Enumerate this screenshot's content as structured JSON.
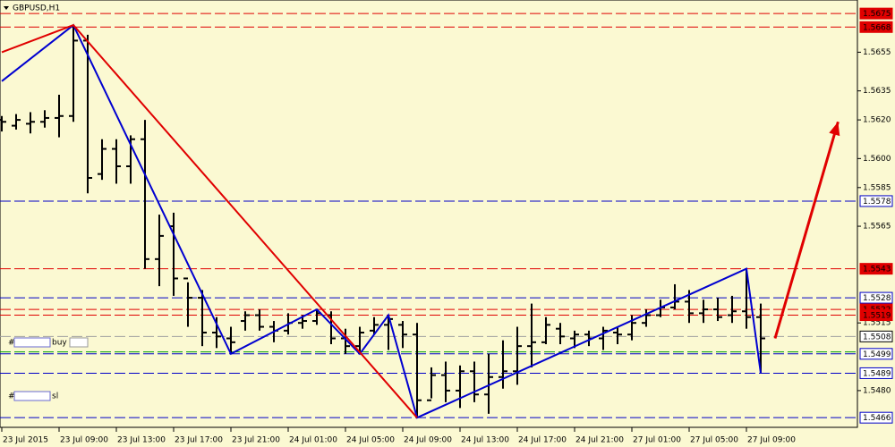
{
  "chart_data": {
    "type": "ohlc",
    "title": "GBPUSD,H1",
    "color": "#000000",
    "x": [
      0,
      1,
      2,
      3,
      4,
      5,
      6,
      7,
      8,
      9,
      10,
      11,
      12,
      13,
      14,
      15,
      16,
      17,
      18,
      19,
      20,
      21,
      22,
      23,
      24,
      25,
      26,
      27,
      28,
      29,
      30,
      31,
      32,
      33,
      34,
      35,
      36,
      37,
      38,
      39,
      40,
      41,
      42,
      43,
      44,
      45,
      46,
      47,
      48,
      49,
      50,
      51,
      52,
      53
    ],
    "open": [
      1.562,
      1.5617,
      1.5618,
      1.5619,
      1.5621,
      1.5622,
      1.5661,
      1.5592,
      1.5605,
      1.5596,
      1.561,
      1.5548,
      1.5565,
      1.5538,
      1.5528,
      1.551,
      1.5507,
      1.5516,
      1.5519,
      1.5513,
      1.5511,
      1.5515,
      1.5516,
      1.5519,
      1.5507,
      1.5503,
      1.5511,
      1.5514,
      1.5514,
      1.5509,
      1.5475,
      1.5488,
      1.548,
      1.549,
      1.5478,
      1.5487,
      1.549,
      1.5503,
      1.5505,
      1.5512,
      1.5507,
      1.5509,
      1.5507,
      1.551,
      1.5509,
      1.5515,
      1.5519,
      1.5523,
      1.5526,
      1.552,
      1.5522,
      1.5519,
      1.5521,
      1.5518
    ],
    "high": [
      1.5622,
      1.5623,
      1.5624,
      1.5625,
      1.5633,
      1.5669,
      1.5664,
      1.561,
      1.561,
      1.5612,
      1.562,
      1.5571,
      1.5572,
      1.5536,
      1.5532,
      1.5518,
      1.5513,
      1.5521,
      1.5522,
      1.5516,
      1.552,
      1.5519,
      1.5522,
      1.5521,
      1.5512,
      1.5513,
      1.5518,
      1.5519,
      1.5516,
      1.5515,
      1.5492,
      1.5495,
      1.5493,
      1.5495,
      1.5499,
      1.5506,
      1.5513,
      1.5525,
      1.5518,
      1.5515,
      1.5511,
      1.5511,
      1.5513,
      1.5513,
      1.5519,
      1.5522,
      1.5527,
      1.5535,
      1.5532,
      1.5527,
      1.5528,
      1.5529,
      1.5543,
      1.5525
    ],
    "low": [
      1.5614,
      1.5615,
      1.5613,
      1.5616,
      1.5611,
      1.5619,
      1.5582,
      1.5589,
      1.5587,
      1.5587,
      1.5543,
      1.5534,
      1.5529,
      1.5513,
      1.5503,
      1.5502,
      1.5499,
      1.5511,
      1.5511,
      1.5505,
      1.5509,
      1.5512,
      1.5514,
      1.5504,
      1.5499,
      1.5499,
      1.5509,
      1.5501,
      1.5502,
      1.5466,
      1.5476,
      1.5474,
      1.5471,
      1.5474,
      1.5468,
      1.5481,
      1.5483,
      1.5492,
      1.5504,
      1.5504,
      1.5502,
      1.5503,
      1.5501,
      1.5504,
      1.5506,
      1.5513,
      1.5518,
      1.5522,
      1.5515,
      1.5515,
      1.5516,
      1.5515,
      1.5512,
      1.5489
    ],
    "close": [
      1.5619,
      1.562,
      1.5619,
      1.5621,
      1.5622,
      1.5661,
      1.559,
      1.5605,
      1.5596,
      1.561,
      1.5548,
      1.556,
      1.5538,
      1.5528,
      1.551,
      1.5508,
      1.5505,
      1.5519,
      1.5513,
      1.5511,
      1.5515,
      1.5516,
      1.552,
      1.5507,
      1.5503,
      1.551,
      1.5514,
      1.5517,
      1.5509,
      1.5475,
      1.5488,
      1.548,
      1.549,
      1.5478,
      1.5487,
      1.549,
      1.5503,
      1.5505,
      1.5514,
      1.5508,
      1.5509,
      1.5507,
      1.5511,
      1.5509,
      1.5515,
      1.5519,
      1.5523,
      1.5526,
      1.552,
      1.5522,
      1.5518,
      1.5521,
      1.5518,
      1.5507
    ],
    "xlim": [
      0,
      60
    ],
    "ylim": [
      1.5461,
      1.5682
    ],
    "xticks": [
      {
        "value": 0,
        "label": "23 Jul 2015"
      },
      {
        "value": 4,
        "label": "23 Jul 09:00"
      },
      {
        "value": 8,
        "label": "23 Jul 13:00"
      },
      {
        "value": 12,
        "label": "23 Jul 17:00"
      },
      {
        "value": 16,
        "label": "23 Jul 21:00"
      },
      {
        "value": 20,
        "label": "24 Jul 01:00"
      },
      {
        "value": 24,
        "label": "24 Jul 05:00"
      },
      {
        "value": 28,
        "label": "24 Jul 09:00"
      },
      {
        "value": 32,
        "label": "24 Jul 13:00"
      },
      {
        "value": 36,
        "label": "24 Jul 17:00"
      },
      {
        "value": 40,
        "label": "24 Jul 21:00"
      },
      {
        "value": 44,
        "label": "27 Jul 01:00"
      },
      {
        "value": 48,
        "label": "27 Jul 05:00"
      },
      {
        "value": 52,
        "label": "27 Jul 09:00"
      }
    ],
    "yticks": [
      {
        "value": 1.5655,
        "label": "1.5655"
      },
      {
        "value": 1.5635,
        "label": "1.5635"
      },
      {
        "value": 1.562,
        "label": "1.5620"
      },
      {
        "value": 1.56,
        "label": "1.5600"
      },
      {
        "value": 1.5585,
        "label": "1.5585"
      },
      {
        "value": 1.5565,
        "label": "1.5565"
      },
      {
        "value": 1.5515,
        "label": "1.5515"
      },
      {
        "value": 1.548,
        "label": "1.5480"
      }
    ],
    "levels": [
      {
        "value": 1.5675,
        "color": "#e00000",
        "boxed": true
      },
      {
        "value": 1.5668,
        "color": "#e00000",
        "boxed": true
      },
      {
        "value": 1.5578,
        "color": "#0000c8",
        "boxed": true
      },
      {
        "value": 1.5543,
        "color": "#e00000",
        "boxed": true
      },
      {
        "value": 1.5528,
        "color": "#0000c8",
        "boxed": true
      },
      {
        "value": 1.5522,
        "color": "#e00000",
        "boxed": true
      },
      {
        "value": 1.5519,
        "color": "#e00000",
        "boxed": true
      },
      {
        "value": 1.5508,
        "color": "#a0a0a0",
        "boxed": true
      },
      {
        "value": 1.55,
        "color": "#00a000",
        "boxed": false
      },
      {
        "value": 1.5499,
        "color": "#0000c8",
        "boxed": true
      },
      {
        "value": 1.5489,
        "color": "#0000c8",
        "boxed": true
      },
      {
        "value": 1.5466,
        "color": "#0000c8",
        "boxed": true
      }
    ],
    "lines": [
      {
        "color": "#0000d0",
        "x": [
          0,
          5,
          16,
          22,
          25,
          27,
          29,
          52,
          53
        ],
        "values": [
          1.564,
          1.5669,
          1.5499,
          1.5522,
          1.5499,
          1.5519,
          1.5466,
          1.5543,
          1.5489
        ],
        "arrow": false
      },
      {
        "color": "#e00000",
        "x": [
          0,
          5,
          29
        ],
        "values": [
          1.5655,
          1.5669,
          1.5466
        ],
        "arrow": false
      },
      {
        "color": "#e00000",
        "x": [
          54,
          58.4
        ],
        "values": [
          1.5507,
          1.5619
        ],
        "arrow": true
      }
    ],
    "order_tags": [
      {
        "prefix": "#",
        "text": "buy"
      },
      {
        "prefix": "#",
        "text": "sl"
      }
    ]
  }
}
